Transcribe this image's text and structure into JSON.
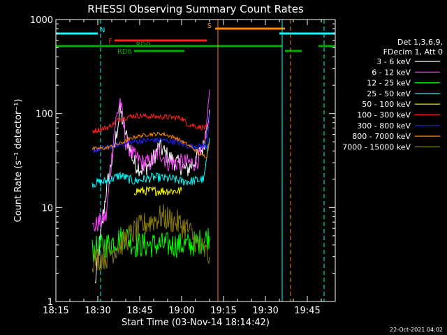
{
  "chart_data": {
    "type": "line",
    "title": "RHESSI Observing Summary Count Rates",
    "xlabel": "Start Time (03-Nov-14 18:14:42)",
    "ylabel": "Count Rate (s⁻¹ detector⁻¹)",
    "y_scale": "log",
    "ylim": [
      1,
      1000
    ],
    "xlim": [
      "18:15",
      "19:55"
    ],
    "x_ticks": [
      "18:15",
      "18:30",
      "18:45",
      "19:00",
      "19:15",
      "19:30",
      "19:45"
    ],
    "y_ticks": [
      "1",
      "10",
      "100",
      "1000"
    ],
    "timestamp": "22-Oct-2021 04:02",
    "legend_header": [
      "Det 1,3,6,9,",
      "FDecim 1, Att 0"
    ],
    "legend_position": "right",
    "series": [
      {
        "name": "3 - 6 keV",
        "color": "#ffffff",
        "x": [
          "18:29",
          "18:33",
          "18:36",
          "18:38",
          "18:40",
          "18:43",
          "18:46",
          "18:49",
          "18:52",
          "18:55",
          "18:58",
          "19:02",
          "19:05",
          "19:08",
          "19:09",
          "19:10"
        ],
        "y": [
          1.5,
          15,
          45,
          110,
          60,
          30,
          25,
          30,
          45,
          35,
          30,
          25,
          32,
          45,
          80,
          110
        ]
      },
      {
        "name": "6 - 12 keV",
        "color": "#ff44ff",
        "x": [
          "18:28",
          "18:33",
          "18:36",
          "18:38",
          "18:40",
          "18:43",
          "18:46",
          "18:49",
          "18:52",
          "18:55",
          "18:58",
          "19:02",
          "19:05",
          "19:08",
          "19:09",
          "19:10"
        ],
        "y": [
          6,
          8,
          70,
          140,
          50,
          35,
          30,
          30,
          40,
          30,
          30,
          30,
          30,
          40,
          75,
          180
        ]
      },
      {
        "name": "12 - 25 keV",
        "color": "#00ff00",
        "x": [
          "18:28",
          "18:33",
          "18:40",
          "18:43",
          "18:50",
          "18:55",
          "19:00",
          "19:03",
          "19:08",
          "19:10"
        ],
        "y": [
          3.5,
          4,
          5,
          4,
          4,
          4,
          4,
          4,
          4.5,
          5
        ]
      },
      {
        "name": "25 - 50 keV",
        "color": "#00ffff",
        "x": [
          "18:28",
          "18:33",
          "18:38",
          "18:43",
          "18:50",
          "18:57",
          "19:00",
          "19:03",
          "19:08",
          "19:10"
        ],
        "y": [
          18,
          19,
          22,
          19,
          21,
          20,
          19,
          19,
          20,
          55
        ]
      },
      {
        "name": "50 - 100 keV",
        "color": "#ffff00",
        "x": [
          "18:43",
          "18:50",
          "18:57",
          "19:00"
        ],
        "y": [
          15,
          15,
          15,
          15
        ]
      },
      {
        "name": "100 - 300 keV",
        "color": "#ff2020",
        "x": [
          "18:28",
          "18:31",
          "18:34",
          "18:38",
          "18:43",
          "19:00",
          "19:02",
          "19:06",
          "19:09",
          "19:10"
        ],
        "y": [
          65,
          68,
          72,
          88,
          95,
          90,
          78,
          72,
          70,
          80
        ]
      },
      {
        "name": "300 - 800 keV",
        "color": "#2222ff",
        "x": [
          "18:28",
          "18:31",
          "18:34",
          "18:38",
          "18:43",
          "18:48",
          "18:53",
          "18:58",
          "19:02",
          "19:06",
          "19:09",
          "19:10"
        ],
        "y": [
          40,
          42,
          44,
          47,
          50,
          52,
          52,
          50,
          45,
          45,
          45,
          100
        ]
      },
      {
        "name": "800 - 7000 keV",
        "color": "#ff8800",
        "x": [
          "18:28",
          "18:33",
          "18:38",
          "18:43",
          "18:48",
          "18:53",
          "18:58",
          "19:03",
          "19:07",
          "19:09",
          "19:10"
        ],
        "y": [
          42,
          43,
          48,
          56,
          60,
          61,
          55,
          45,
          36,
          35,
          50
        ]
      },
      {
        "name": "7000 - 15000 keV",
        "color": "#8a7a10",
        "x": [
          "18:28",
          "18:33",
          "18:38",
          "18:43",
          "18:48",
          "18:53",
          "18:58",
          "19:02",
          "19:06",
          "19:10"
        ],
        "y": [
          2.8,
          3,
          4,
          5.5,
          7,
          8,
          7,
          6,
          4,
          3
        ]
      }
    ],
    "flag_bars": [
      {
        "label": "N",
        "color": "#00ffff",
        "segments": [
          [
            "18:15",
            "18:30"
          ],
          [
            "19:35",
            "19:55"
          ]
        ]
      },
      {
        "label": "S",
        "color": "#ff8800",
        "segments": [
          [
            "19:12",
            "19:37"
          ]
        ]
      },
      {
        "label": "F",
        "color": "#ff2020",
        "segments": [
          [
            "18:36",
            "19:09"
          ]
        ]
      },
      {
        "label": "RD0",
        "color": "#00aa00",
        "segments": [
          [
            "18:15",
            "19:36"
          ],
          [
            "19:49",
            "19:55"
          ]
        ]
      },
      {
        "label": "RD6",
        "color": "#00aa00",
        "segments": [
          [
            "18:43",
            "19:01"
          ],
          [
            "19:37",
            "19:43"
          ]
        ]
      }
    ],
    "vertical_markers": [
      {
        "x": "18:15",
        "color": "#00ffff",
        "style": "solid"
      },
      {
        "x": "18:31",
        "color": "#00ffff",
        "style": "dashed"
      },
      {
        "x": "19:13",
        "color": "#ff8800",
        "style": "solid"
      },
      {
        "x": "19:36",
        "color": "#00ffff",
        "style": "solid"
      },
      {
        "x": "19:39",
        "color": "#ff8800",
        "style": "dashed"
      },
      {
        "x": "19:51",
        "color": "#00ffff",
        "style": "dashed"
      }
    ]
  }
}
